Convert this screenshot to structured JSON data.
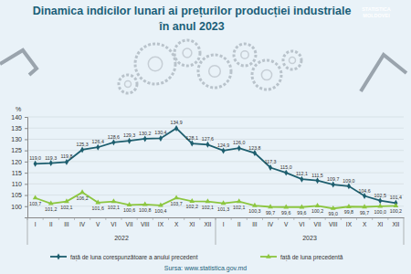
{
  "chart_data": {
    "type": "line",
    "title": [
      "Dinamica indicilor lunari ai prețurilor producției industriale",
      "în anul  2023"
    ],
    "logo": [
      "STATISTICA",
      "MOLDOVEI"
    ],
    "y_unit": "%",
    "source": "Sursa: www.statistica.gov.md",
    "categories": [
      "I",
      "II",
      "III",
      "IV",
      "V",
      "VI",
      "VII",
      "VIII",
      "IX",
      "X",
      "XI",
      "XII",
      "I",
      "II",
      "III",
      "IV",
      "V",
      "VI",
      "VII",
      "VIII",
      "IX",
      "X",
      "XI",
      "XII"
    ],
    "groups": [
      "2022",
      "2023"
    ],
    "ylim": [
      95,
      140
    ],
    "yticks": [
      100,
      105,
      110,
      115,
      120,
      125,
      130,
      135,
      140
    ],
    "grid": true,
    "data_labels": true,
    "legend": "bottom",
    "series": [
      {
        "name": "față de luna corespunzătoare a anului precedent",
        "color": "#1d5e6e",
        "marker": "diamond",
        "values": [
          119.0,
          119.3,
          119.8,
          125.3,
          126.4,
          128.6,
          129.3,
          130.2,
          130.4,
          134.9,
          128.1,
          127.6,
          124.9,
          126.0,
          123.8,
          117.3,
          115.0,
          112.1,
          111.5,
          109.7,
          109.0,
          104.6,
          102.5,
          101.4
        ],
        "value_labels": [
          "119,0",
          "119,3",
          "119,8",
          "125,3",
          "126,4",
          "128,6",
          "129,3",
          "130,2",
          "130,4",
          "134,9",
          "128,1",
          "127,6",
          "124,9",
          "126,0",
          "123,8",
          "117,3",
          "115,0",
          "112,1",
          "111,5",
          "109,7",
          "109,0",
          "104,6",
          "102,5",
          "101,4"
        ]
      },
      {
        "name": "față de luna precedentă",
        "color": "#8cc63f",
        "marker": "triangle",
        "values": [
          103.7,
          101.2,
          102.1,
          106.2,
          101.6,
          102.1,
          100.6,
          100.8,
          100.4,
          103.7,
          102.2,
          102.1,
          101.3,
          102.1,
          100.3,
          99.7,
          99.6,
          99.6,
          100.2,
          99.0,
          99.8,
          99.7,
          100.0,
          100.2
        ],
        "value_labels": [
          "103,7",
          "101,2",
          "102,1",
          "106,2",
          "101,6",
          "102,1",
          "100,6",
          "100,8",
          "100,4",
          "103,7",
          "102,2",
          "102,1",
          "101,3",
          "102,1",
          "100,3",
          "99,7",
          "99,6",
          "99,6",
          "100,2",
          "99,0",
          "99,8",
          "99,7",
          "100,0",
          "100,2"
        ]
      }
    ]
  }
}
